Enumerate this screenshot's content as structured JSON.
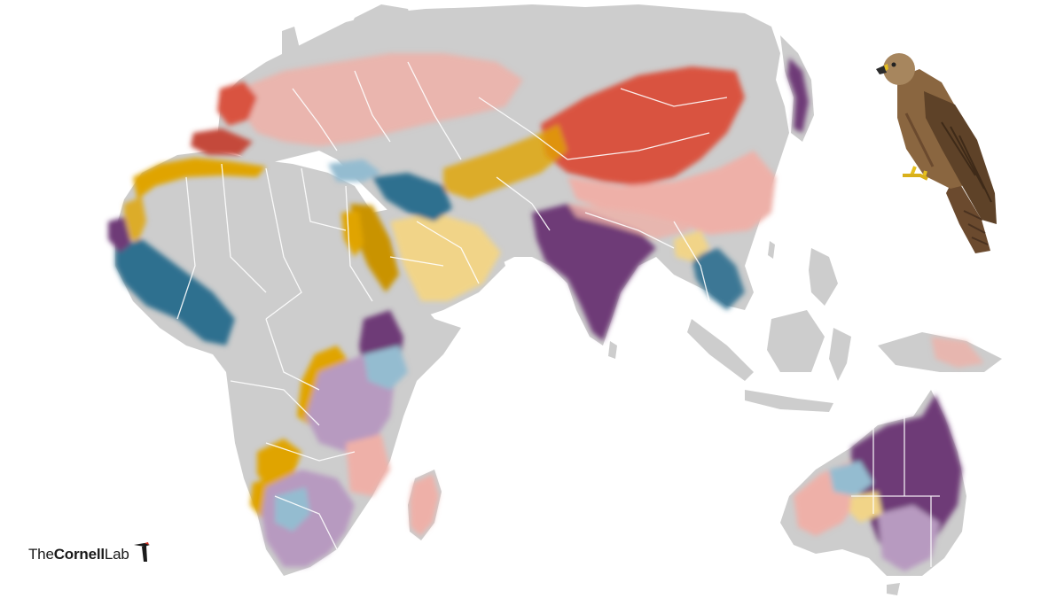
{
  "map": {
    "projection": "eastern-hemisphere",
    "land_color": "#cdcdcd",
    "border_color": "#ffffff",
    "ocean_color": "#ffffff",
    "season_colors": {
      "breeding": "#d9533f",
      "nonbreeding": "#6e3b77",
      "prebreeding_migration": "#e0a400",
      "postbreeding_migration": "#2f6f8f",
      "light_breeding": "#eeb0a8",
      "light_nonbreeding": "#b79ac0",
      "light_migration": "#f1d488",
      "light_resident": "#94bcd0"
    }
  },
  "illustration": {
    "icon": "black-kite-bird-illustration"
  },
  "logo": {
    "part1": "The",
    "part2": "Cornell",
    "part3": "Lab",
    "icon": "woodpecker-icon"
  }
}
